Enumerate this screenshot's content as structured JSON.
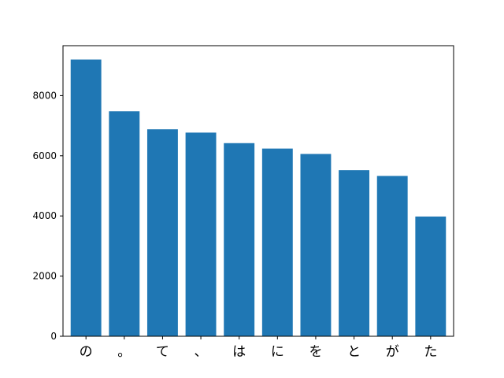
{
  "chart_data": {
    "type": "bar",
    "title": "",
    "xlabel": "",
    "ylabel": "",
    "categories": [
      "の",
      "。",
      "て",
      "、",
      "は",
      "に",
      "を",
      "と",
      "が",
      "た"
    ],
    "values": [
      9200,
      7480,
      6880,
      6770,
      6420,
      6240,
      6060,
      5520,
      5330,
      3980
    ],
    "ylim": [
      0,
      9660
    ],
    "yticks": [
      0,
      2000,
      4000,
      6000,
      8000
    ],
    "ytick_labels": [
      "0",
      "2000",
      "4000",
      "6000",
      "8000"
    ],
    "grid": false,
    "bar_color": "#1f77b4"
  }
}
